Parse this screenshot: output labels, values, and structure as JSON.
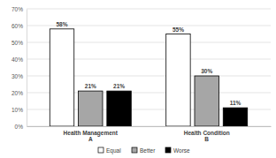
{
  "chart_data": {
    "type": "bar",
    "categories": [
      "Health Management\nA",
      "Health Condition\nB"
    ],
    "series": [
      {
        "name": "Equal",
        "color": "#ffffff",
        "values": [
          58,
          55
        ],
        "value_labels": [
          "58%",
          "55%"
        ]
      },
      {
        "name": "Better",
        "color": "#a6a6a6",
        "values": [
          21,
          30
        ],
        "value_labels": [
          "21%",
          "30%"
        ]
      },
      {
        "name": "Worse",
        "color": "#000000",
        "values": [
          21,
          11
        ],
        "value_labels": [
          "21%",
          "11%"
        ]
      }
    ],
    "ylim": [
      0,
      70
    ],
    "yticks": [
      {
        "value": 0,
        "label": "0%"
      },
      {
        "value": 10,
        "label": "10%"
      },
      {
        "value": 20,
        "label": "20%"
      },
      {
        "value": 30,
        "label": "30%"
      },
      {
        "value": 40,
        "label": "40%"
      },
      {
        "value": 50,
        "label": "50%"
      },
      {
        "value": 60,
        "label": "60%"
      },
      {
        "value": 70,
        "label": "70%"
      }
    ],
    "grid": true,
    "legend": "bottom",
    "data_labels": true
  }
}
